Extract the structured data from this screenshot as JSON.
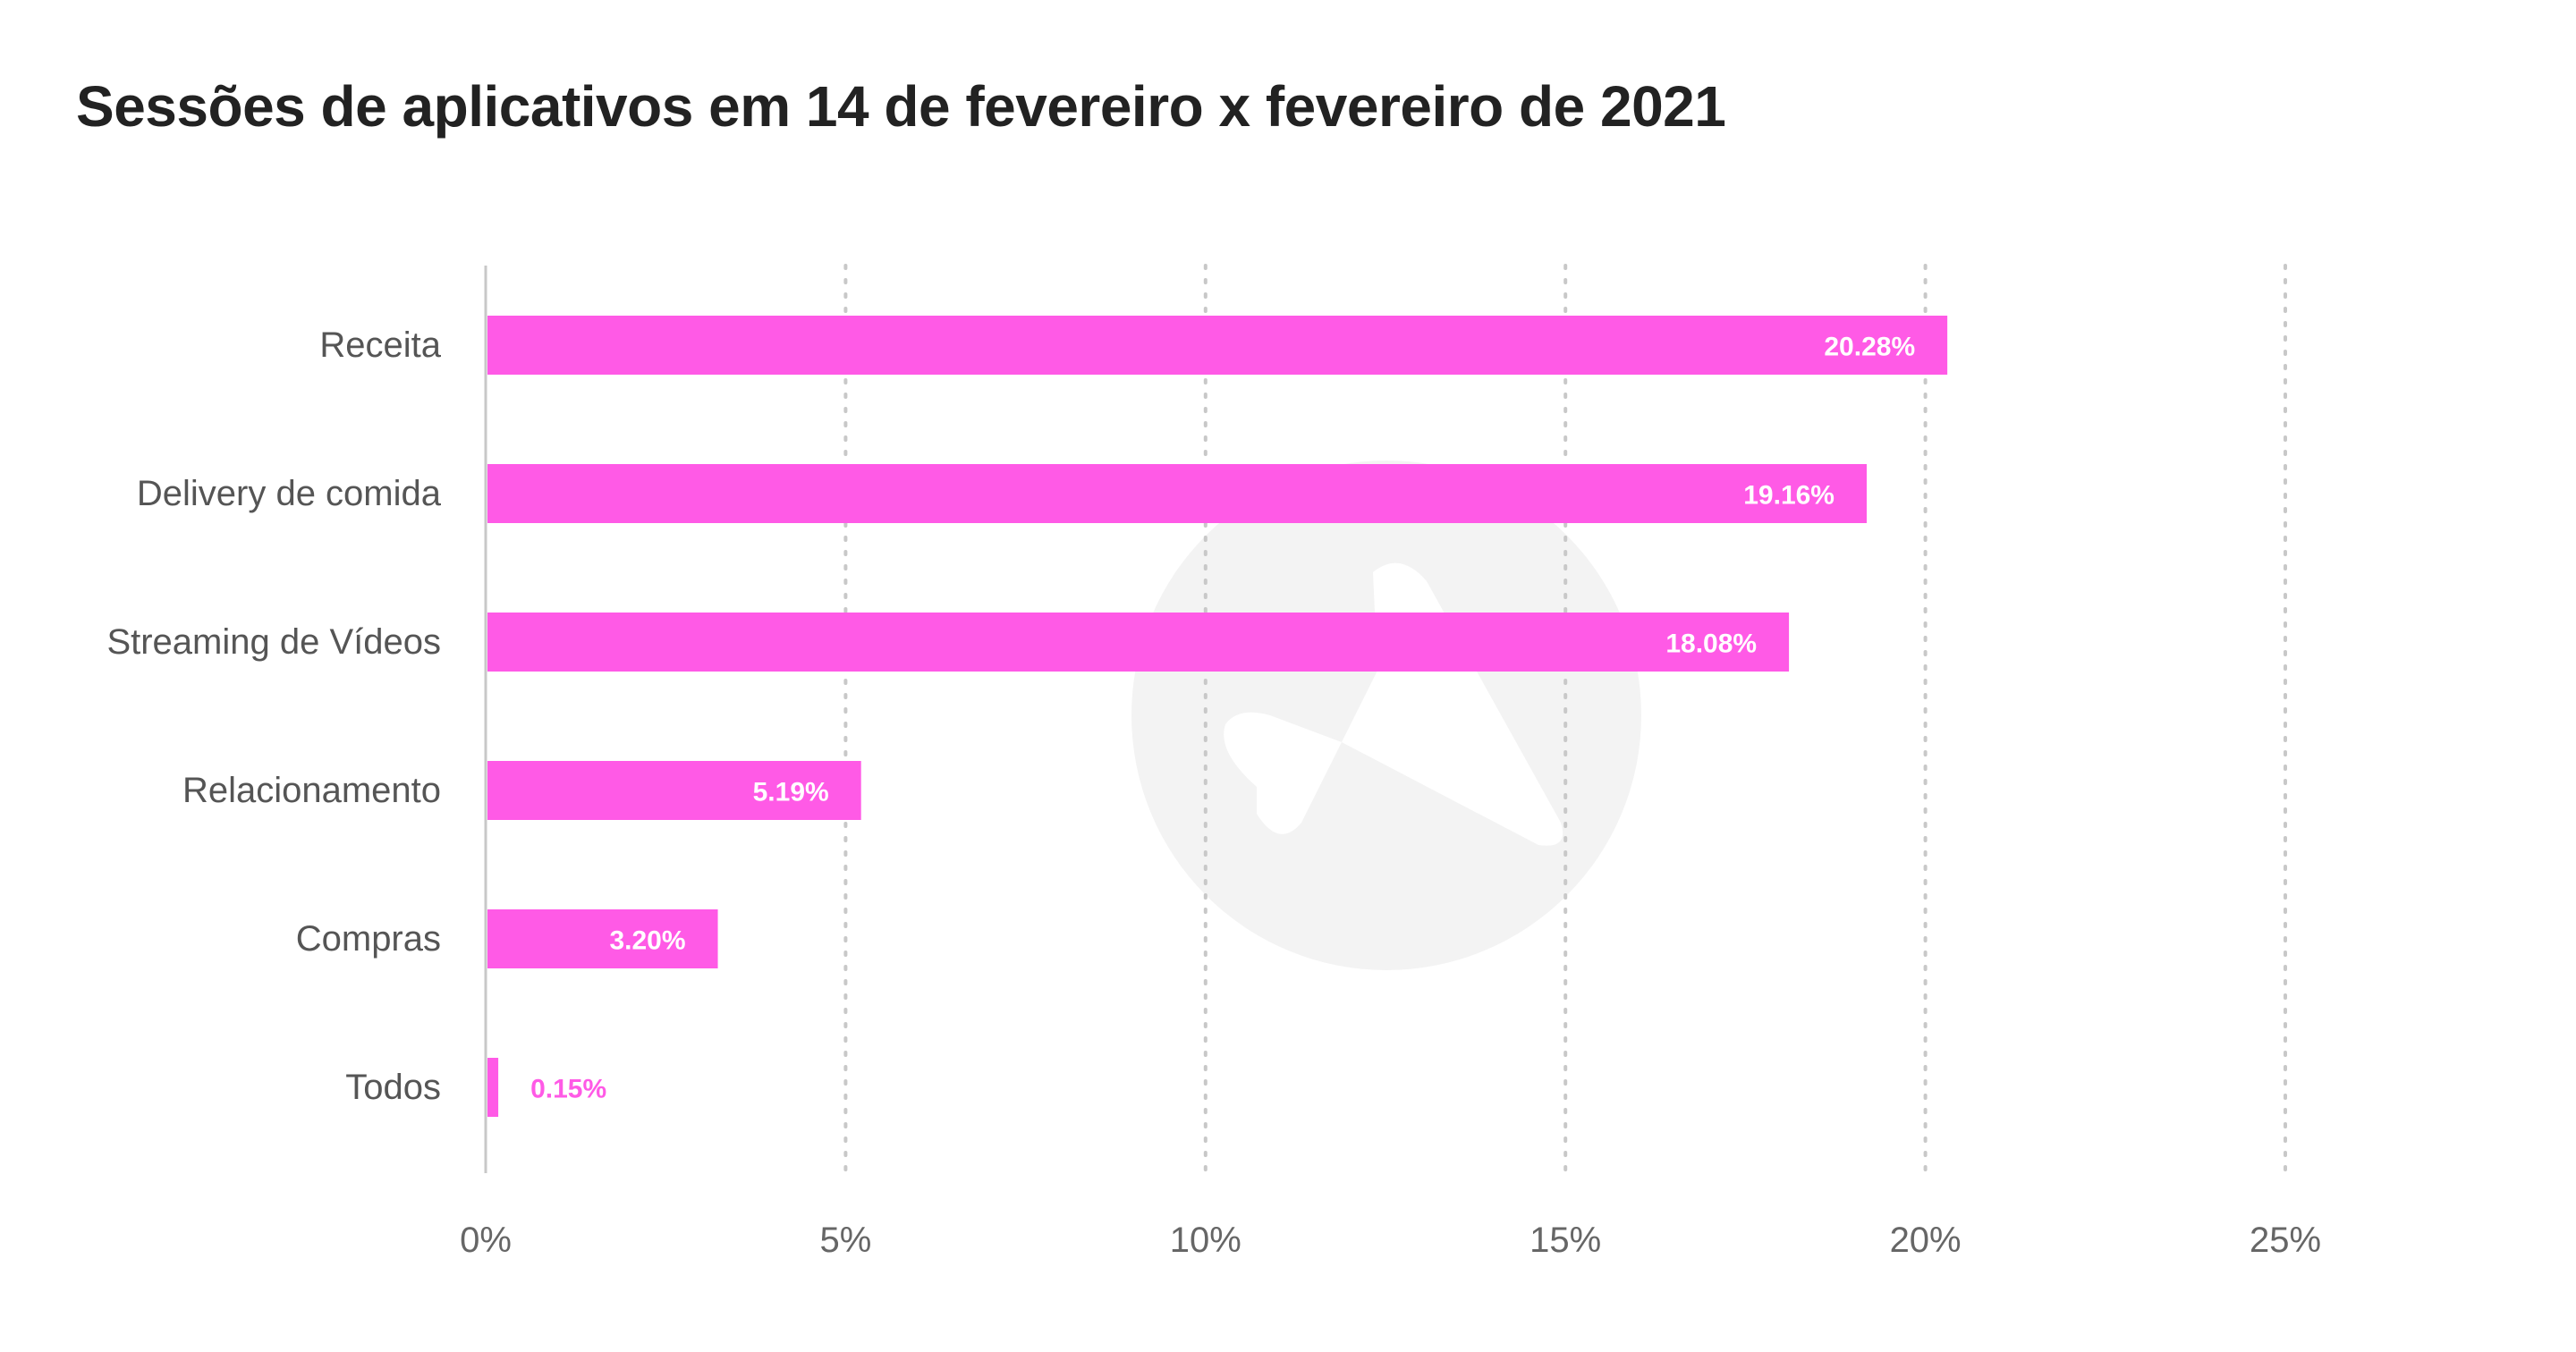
{
  "chart_data": {
    "type": "bar",
    "orientation": "horizontal",
    "title": "Sessões de aplicativos em 14 de fevereiro x fevereiro de 2021",
    "categories": [
      "Receita",
      "Delivery de comida",
      "Streaming de Vídeos",
      "Relacionamento",
      "Compras",
      "Todos"
    ],
    "values": [
      20.28,
      19.16,
      18.08,
      5.19,
      3.2,
      0.15
    ],
    "data_labels": [
      "20.28%",
      "19.16%",
      "18.08%",
      "5.19%",
      "3.20%",
      "0.15%"
    ],
    "xlim": [
      0,
      25
    ],
    "xticks": [
      0,
      5,
      10,
      15,
      20,
      25
    ],
    "xtick_labels": [
      "0%",
      "5%",
      "10%",
      "15%",
      "20%",
      "25%"
    ],
    "grid": "vertical dotted",
    "legend": "none",
    "colors": {
      "bar": "#ff5ae6",
      "label_inside": "#ffffff",
      "label_outside": "#ff5ae6",
      "axis": "#c8c8c8",
      "grid": "#c8c8c8",
      "watermark": "#f3f3f3"
    }
  }
}
